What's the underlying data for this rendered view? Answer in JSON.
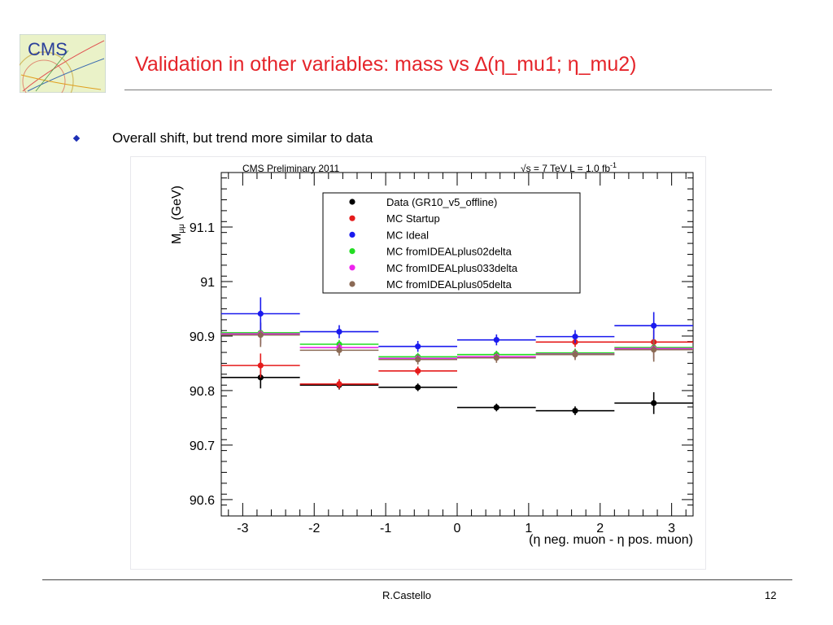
{
  "logo": {
    "text": "CMS"
  },
  "slide": {
    "title": "Validation in other variables: mass vs ∆(η_mu1; η_mu2)",
    "bullet": "Overall shift, but trend more similar to data"
  },
  "footer": {
    "author": "R.Castello",
    "page": "12"
  },
  "chart_data": {
    "type": "scatter",
    "header_left": "CMS Preliminary 2011",
    "header_right": "√s = 7 TeV  L = 1.0 fb",
    "header_right_sup": "-1",
    "ylabel": "M",
    "ylabel_sub": "μμ",
    "ylabel_unit": " (GeV)",
    "xlabel": "(η neg. muon - η pos. muon)",
    "xlim": [
      -3.3,
      3.3
    ],
    "ylim": [
      90.57,
      91.2
    ],
    "xticks": [
      -3,
      -2,
      -1,
      0,
      1,
      2,
      3
    ],
    "xtick_labels": [
      "-3",
      "-2",
      "-1",
      "0",
      "1",
      "2",
      "3"
    ],
    "yticks": [
      90.6,
      90.7,
      90.8,
      90.9,
      91,
      91.1
    ],
    "ytick_labels": [
      "90.6",
      "90.7",
      "90.8",
      "90.9",
      "91",
      "91.1"
    ],
    "bin_edges": [
      -3.3,
      -2.2,
      -1.1,
      0,
      1.1,
      2.2,
      3.3
    ],
    "x": [
      -2.75,
      -1.65,
      -0.55,
      0.55,
      1.65,
      2.75
    ],
    "legend_position": "top-center",
    "series": [
      {
        "name": "Data (GR10_v5_offline)",
        "color": "#000000",
        "values": [
          90.824,
          90.81,
          90.806,
          90.769,
          90.763,
          90.777
        ],
        "errors": [
          0.02,
          0.008,
          0.007,
          0.007,
          0.008,
          0.02
        ]
      },
      {
        "name": "MC Startup",
        "color": "#e51b1b",
        "values": [
          90.846,
          90.812,
          90.836,
          90.862,
          90.889,
          90.889
        ],
        "errors": [
          0.022,
          0.009,
          0.008,
          0.008,
          0.009,
          0.022
        ]
      },
      {
        "name": "MC Ideal",
        "color": "#1a1aee",
        "values": [
          90.941,
          90.908,
          90.881,
          90.893,
          90.899,
          90.919
        ],
        "errors": [
          0.03,
          0.012,
          0.01,
          0.01,
          0.012,
          0.025
        ]
      },
      {
        "name": "MC fromIDEALplus02delta",
        "color": "#22dd22",
        "values": [
          90.906,
          90.885,
          90.862,
          90.866,
          90.869,
          90.879
        ],
        "errors": [
          0.02,
          0.008,
          0.007,
          0.007,
          0.008,
          0.02
        ]
      },
      {
        "name": "MC fromIDEALplus033delta",
        "color": "#ee22ee",
        "values": [
          90.904,
          90.879,
          90.859,
          90.862,
          90.867,
          90.877
        ],
        "errors": [
          0.02,
          0.008,
          0.007,
          0.007,
          0.008,
          0.02
        ]
      },
      {
        "name": "MC fromIDEALplus05delta",
        "color": "#8b6a55",
        "values": [
          90.902,
          90.874,
          90.857,
          90.86,
          90.866,
          90.875
        ],
        "errors": [
          0.022,
          0.01,
          0.009,
          0.009,
          0.01,
          0.022
        ]
      }
    ]
  }
}
